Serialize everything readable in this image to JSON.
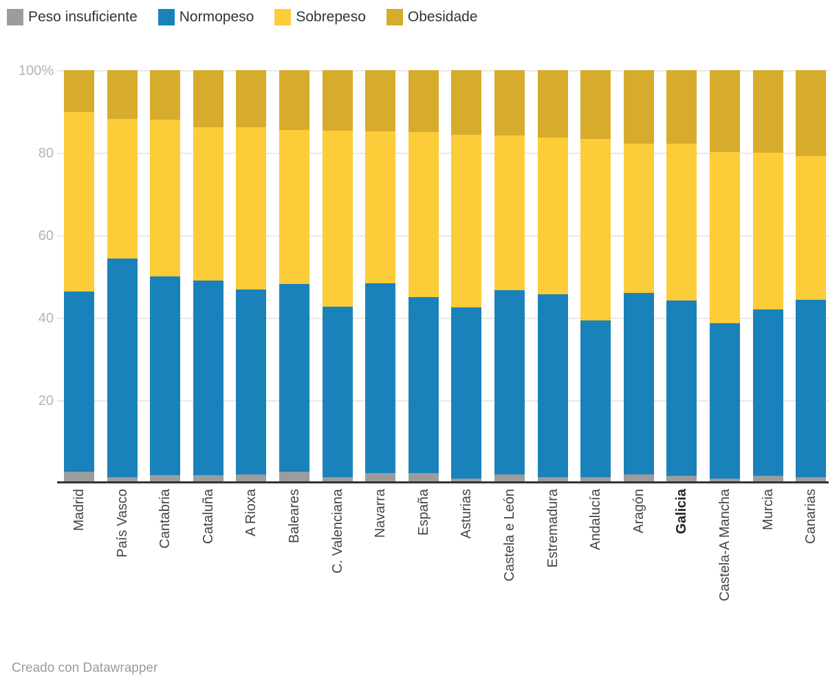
{
  "footer": {
    "credit": "Creado con Datawrapper"
  },
  "chart_data": {
    "type": "bar",
    "stacked": true,
    "percent_stacked": true,
    "unit": "%",
    "title": "",
    "xlabel": "",
    "ylabel": "",
    "ylim": [
      0,
      100
    ],
    "yticks": [
      20,
      40,
      60,
      80,
      100
    ],
    "ytick_labels": [
      "20",
      "40",
      "60",
      "80",
      "100%"
    ],
    "grid": "horizontal",
    "legend_position": "top-left",
    "bold_category": "Galicia",
    "categories": [
      "Madrid",
      "País Vasco",
      "Cantabria",
      "Cataluña",
      "A Rioxa",
      "Baleares",
      "C. Valenciana",
      "Navarra",
      "España",
      "Asturias",
      "Castela e León",
      "Estremadura",
      "Andalucía",
      "Aragón",
      "Galicia",
      "Castela-A Mancha",
      "Murcia",
      "Canarias"
    ],
    "series": [
      {
        "name": "Peso insuficiente",
        "color": "#9c9c9c",
        "values": [
          2.7,
          1.3,
          1.8,
          1.8,
          2.0,
          2.7,
          1.4,
          2.3,
          2.3,
          1.0,
          2.0,
          1.4,
          1.4,
          2.0,
          1.7,
          1.0,
          1.7,
          1.3
        ]
      },
      {
        "name": "Normopeso",
        "color": "#1a82ba",
        "values": [
          43.7,
          53.1,
          48.2,
          47.2,
          44.8,
          45.4,
          41.3,
          46.1,
          42.7,
          41.5,
          44.6,
          44.2,
          38.0,
          44.0,
          42.4,
          37.7,
          40.3,
          43.1
        ]
      },
      {
        "name": "Sobrepeso",
        "color": "#fdcc39",
        "values": [
          43.4,
          33.7,
          38.0,
          37.2,
          39.4,
          37.4,
          42.7,
          36.7,
          40.0,
          41.9,
          37.6,
          38.0,
          44.0,
          36.1,
          38.0,
          41.5,
          38.0,
          34.8
        ]
      },
      {
        "name": "Obesidade",
        "color": "#d7ab2b",
        "values": [
          10.2,
          11.9,
          12.0,
          13.8,
          13.8,
          14.5,
          14.6,
          14.9,
          15.0,
          15.6,
          15.8,
          16.4,
          16.6,
          17.9,
          17.9,
          19.8,
          20.0,
          20.8
        ]
      }
    ]
  }
}
